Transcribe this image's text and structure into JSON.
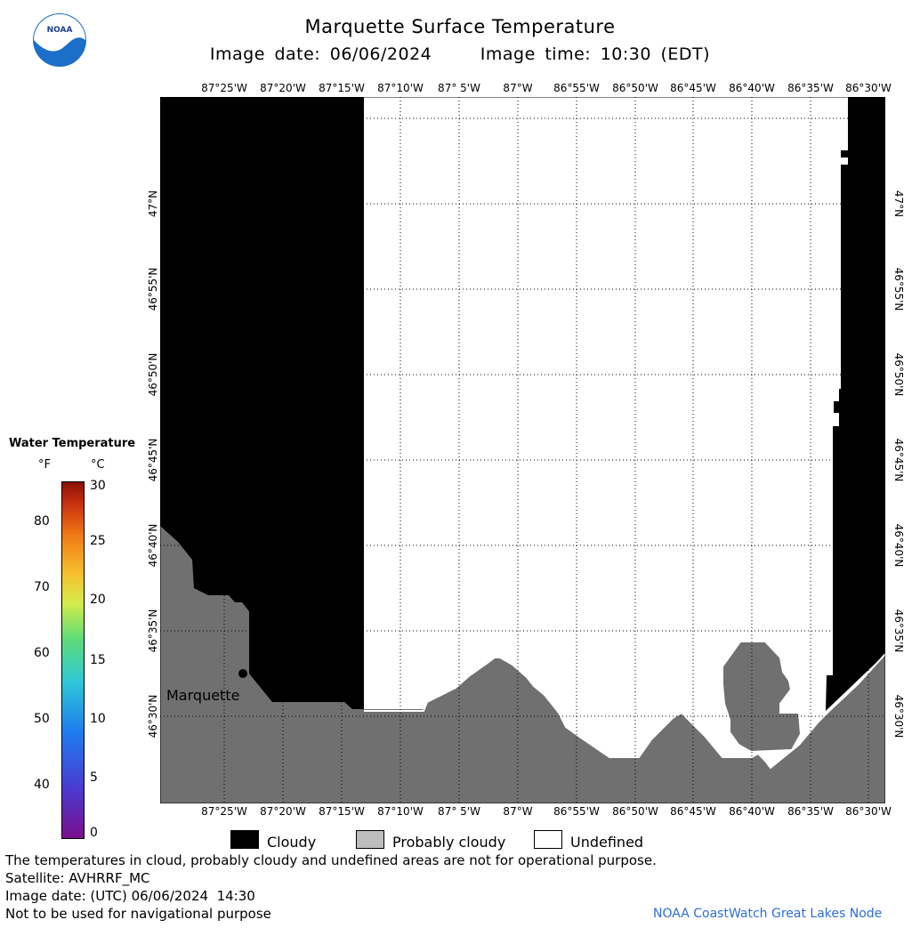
{
  "header": {
    "title": "Marquette Surface Temperature",
    "image_date": "Image date: 06/06/2024",
    "image_time": "Image time: 10:30 (EDT)"
  },
  "logo": {
    "text": "NOAA"
  },
  "map": {
    "lon_labels": [
      "87°25'W",
      "87°20'W",
      "87°15'W",
      "87°10'W",
      "87° 5'W",
      "87°W",
      "86°55'W",
      "86°50'W",
      "86°45'W",
      "86°40'W",
      "86°35'W",
      "86°30'W"
    ],
    "lat_labels": [
      "47°N",
      "46°55'N",
      "46°50'N",
      "46°45'N",
      "46°40'N",
      "46°35'N",
      "46°30'N"
    ],
    "city_label": "Marquette",
    "colors": {
      "cloudy": "#000000",
      "land": "#707070",
      "undefined": "#ffffff",
      "grid": "#000000"
    }
  },
  "scale": {
    "title": "Water Temperature",
    "unit_f": "°F",
    "unit_c": "°C",
    "f_ticks": [
      "80",
      "70",
      "60",
      "50",
      "40"
    ],
    "c_ticks": [
      "30",
      "25",
      "20",
      "15",
      "10",
      "5",
      "0"
    ]
  },
  "legend": {
    "cloudy": "Cloudy",
    "probably_cloudy": "Probably cloudy",
    "undefined": "Undefined"
  },
  "footer": {
    "note": "The temperatures in cloud, probably cloudy and undefined areas are not for operational purpose.",
    "satellite": "Satellite: AVHRRF_MC",
    "utc_date": "Image date: (UTC) 06/06/2024  14:30",
    "nav_warning": "Not to be used for navigational purpose",
    "credit": "NOAA CoastWatch Great Lakes Node"
  }
}
